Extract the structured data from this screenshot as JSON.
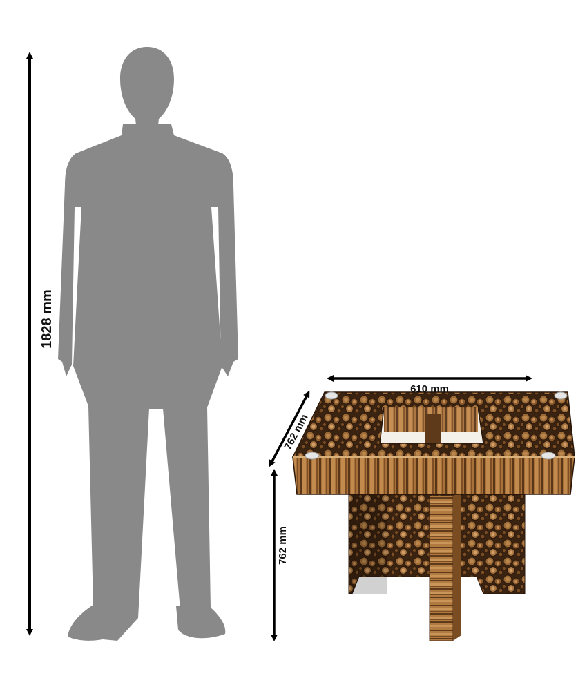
{
  "dimensions": {
    "person_height": "1828 mm",
    "table_width": "610 mm",
    "table_depth": "762 mm",
    "table_height": "762 mm"
  },
  "icons": {
    "person": "person-silhouette-icon",
    "table": "wooden-table-icon"
  },
  "colors": {
    "silhouette": "#898989",
    "arrow": "#000000",
    "wood_dark": "#4a2e17",
    "wood_mid": "#8a5a2c",
    "wood_light": "#c89a60",
    "background": "#ffffff"
  }
}
